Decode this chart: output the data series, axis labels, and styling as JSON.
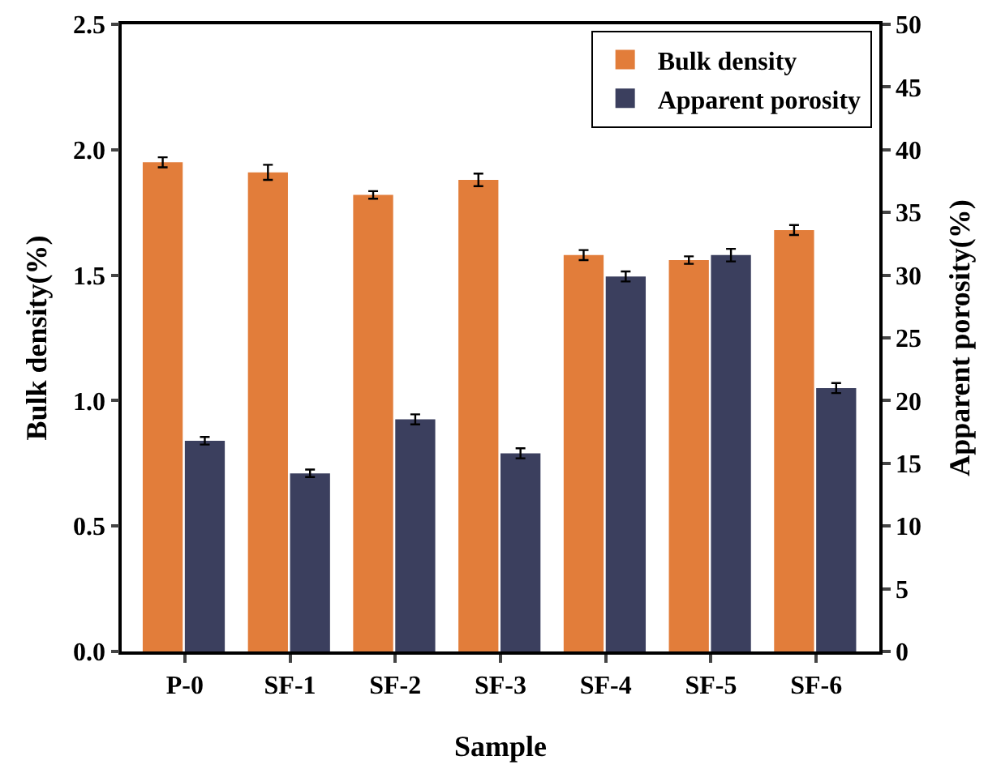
{
  "chart_data": {
    "type": "bar",
    "xlabel": "Sample",
    "ylabel": "Bulk density(%)",
    "y2label": "Apparent porosity(%)",
    "categories": [
      "P-0",
      "SF-1",
      "SF-2",
      "SF-3",
      "SF-4",
      "SF-5",
      "SF-6"
    ],
    "series": [
      {
        "name": "Bulk density",
        "color": "#e27d3a",
        "values": [
          1.95,
          1.91,
          1.82,
          1.88,
          1.58,
          1.56,
          1.68
        ],
        "errors": [
          0.02,
          0.03,
          0.015,
          0.025,
          0.02,
          0.015,
          0.02
        ]
      },
      {
        "name": "Apparent porosity",
        "color": "#3b3f5e",
        "axis": "y2",
        "values": [
          16.8,
          14.2,
          18.5,
          15.8,
          29.9,
          31.6,
          21
        ],
        "errors": [
          0.3,
          0.3,
          0.4,
          0.4,
          0.4,
          0.5,
          0.4
        ]
      }
    ],
    "ylim": [
      0,
      2.5
    ],
    "yticks": [
      {
        "value": 0,
        "label": "0.0"
      },
      0.5,
      {
        "value": 1,
        "label": "1.0"
      },
      1.5,
      {
        "value": 2,
        "label": "2.0"
      },
      2.5
    ],
    "y2lim": [
      0,
      50
    ],
    "y2ticks": [
      0,
      5,
      10,
      15,
      20,
      25,
      30,
      35,
      40,
      45,
      50
    ],
    "grid": false,
    "legend": "top right"
  }
}
